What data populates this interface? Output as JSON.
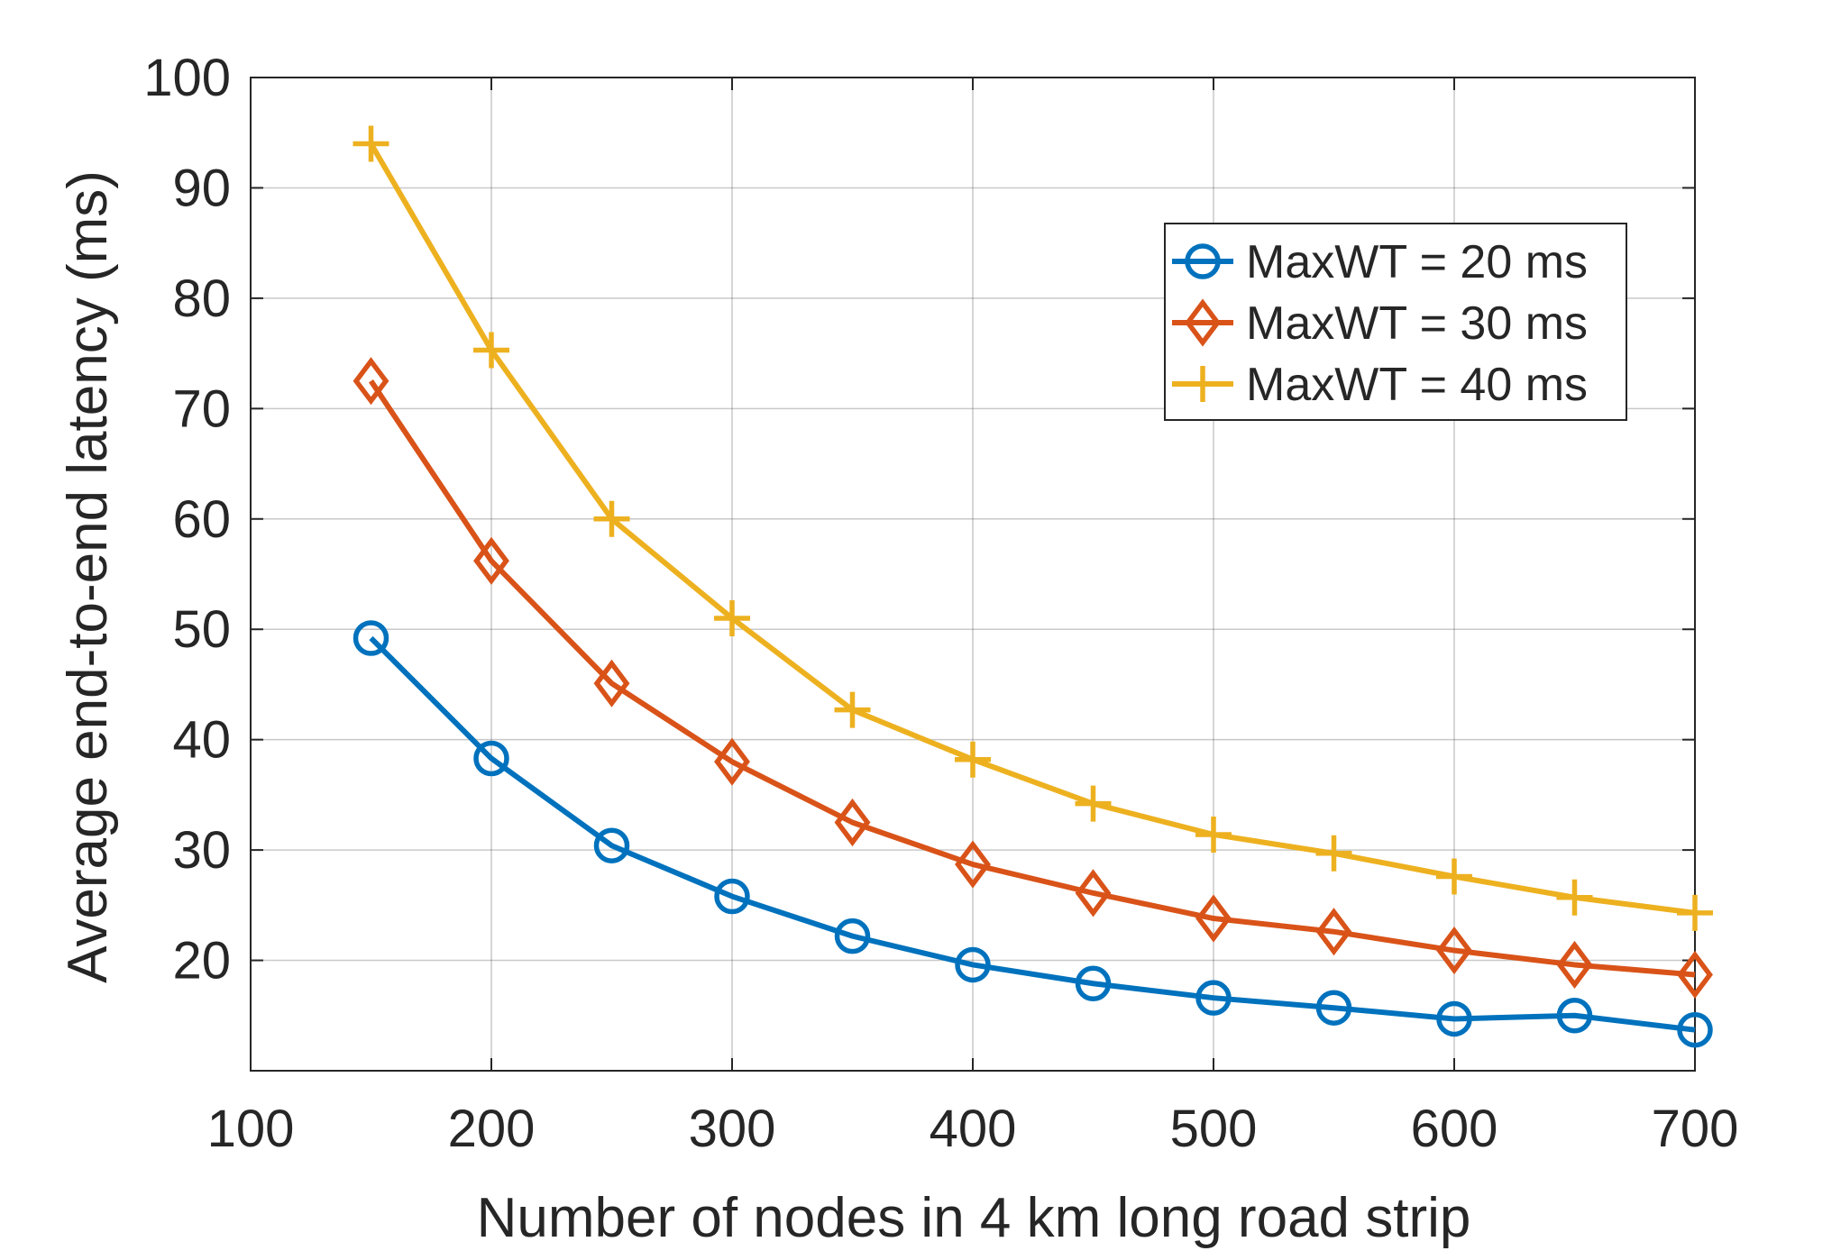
{
  "chart_data": {
    "type": "line",
    "title": "",
    "xlabel": "Number of nodes in 4 km long road strip",
    "ylabel": "Average end-to-end latency (ms)",
    "xlim": [
      100,
      700
    ],
    "ylim": [
      10,
      100
    ],
    "xticks": [
      100,
      200,
      300,
      400,
      500,
      600,
      700
    ],
    "yticks": [
      20,
      30,
      40,
      50,
      60,
      70,
      80,
      90,
      100
    ],
    "grid": true,
    "legend_position": "top-right",
    "x": [
      150,
      200,
      250,
      300,
      350,
      400,
      450,
      500,
      550,
      600,
      650,
      700
    ],
    "series": [
      {
        "name": "MaxWT = 20 ms",
        "color": "#0072BD",
        "marker": "circle",
        "values": [
          49.2,
          38.3,
          30.4,
          25.8,
          22.2,
          19.6,
          17.9,
          16.6,
          15.7,
          14.7,
          15.0,
          13.7
        ]
      },
      {
        "name": "MaxWT = 30 ms",
        "color": "#D95319",
        "marker": "diamond",
        "values": [
          72.5,
          56.2,
          45.1,
          38.0,
          32.5,
          28.7,
          26.1,
          23.8,
          22.6,
          20.9,
          19.6,
          18.7
        ]
      },
      {
        "name": "MaxWT = 40 ms",
        "color": "#EDB120",
        "marker": "plus",
        "values": [
          94.0,
          75.3,
          60.0,
          51.0,
          42.7,
          38.2,
          34.2,
          31.4,
          29.7,
          27.6,
          25.7,
          24.3
        ]
      }
    ]
  }
}
